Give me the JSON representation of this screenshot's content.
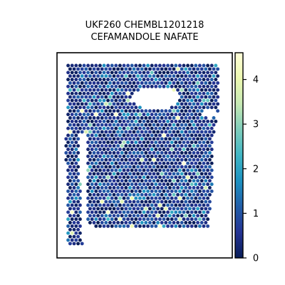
{
  "chart_data": {
    "type": "scatter",
    "subtype": "spatial-hex-spot-map",
    "title_lines": [
      "UKF260 CHEMBL1201218",
      "CEFAMANDOLE NAFATE"
    ],
    "xlabel": "",
    "ylabel": "",
    "axis_ticks": "none",
    "grid": false,
    "colorbar": {
      "colormap": "YlGnBu",
      "range": [
        0,
        4.6
      ],
      "ticks": [
        0,
        1,
        2,
        3,
        4
      ],
      "tick_labels": [
        "0",
        "1",
        "2",
        "3",
        "4"
      ],
      "placement": "right"
    },
    "value_distribution": {
      "bulk_range": [
        0,
        1.2
      ],
      "max_value": 4.6,
      "fraction_above_2": 0.05,
      "shape": "tissue section: main block with a notch at upper-left, a separate narrow strip on the left, and an empty hole near upper-right"
    },
    "colors": {
      "low": "#081d58",
      "mid": "#1d91c0",
      "high": "#ffffd9"
    }
  }
}
